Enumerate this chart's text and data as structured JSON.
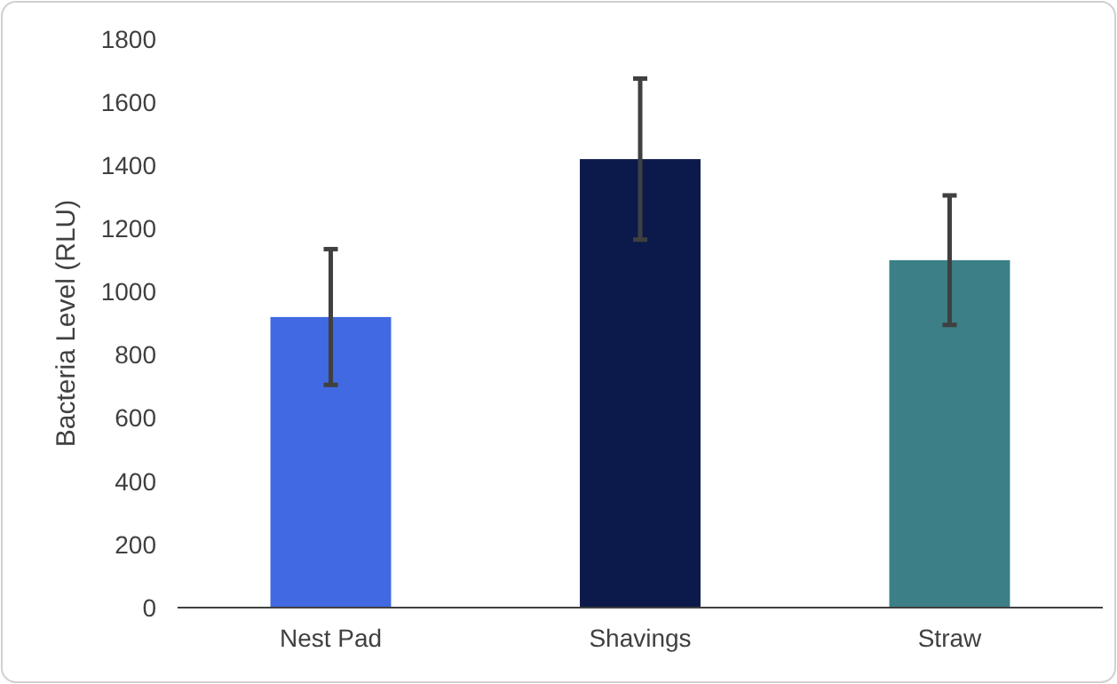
{
  "chart_data": {
    "type": "bar",
    "ylabel": "Bacteria Level (RLU)",
    "categories": [
      "Nest Pad",
      "Shavings",
      "Straw"
    ],
    "values": [
      920,
      1420,
      1100
    ],
    "colors": [
      "#4169e1",
      "#0b1a4a",
      "#3c7f86"
    ],
    "errors": [
      215,
      255,
      205
    ],
    "ylim": [
      0,
      1800
    ],
    "yticks": [
      0,
      200,
      400,
      600,
      800,
      1000,
      1200,
      1400,
      1600,
      1800
    ],
    "grid": false
  }
}
